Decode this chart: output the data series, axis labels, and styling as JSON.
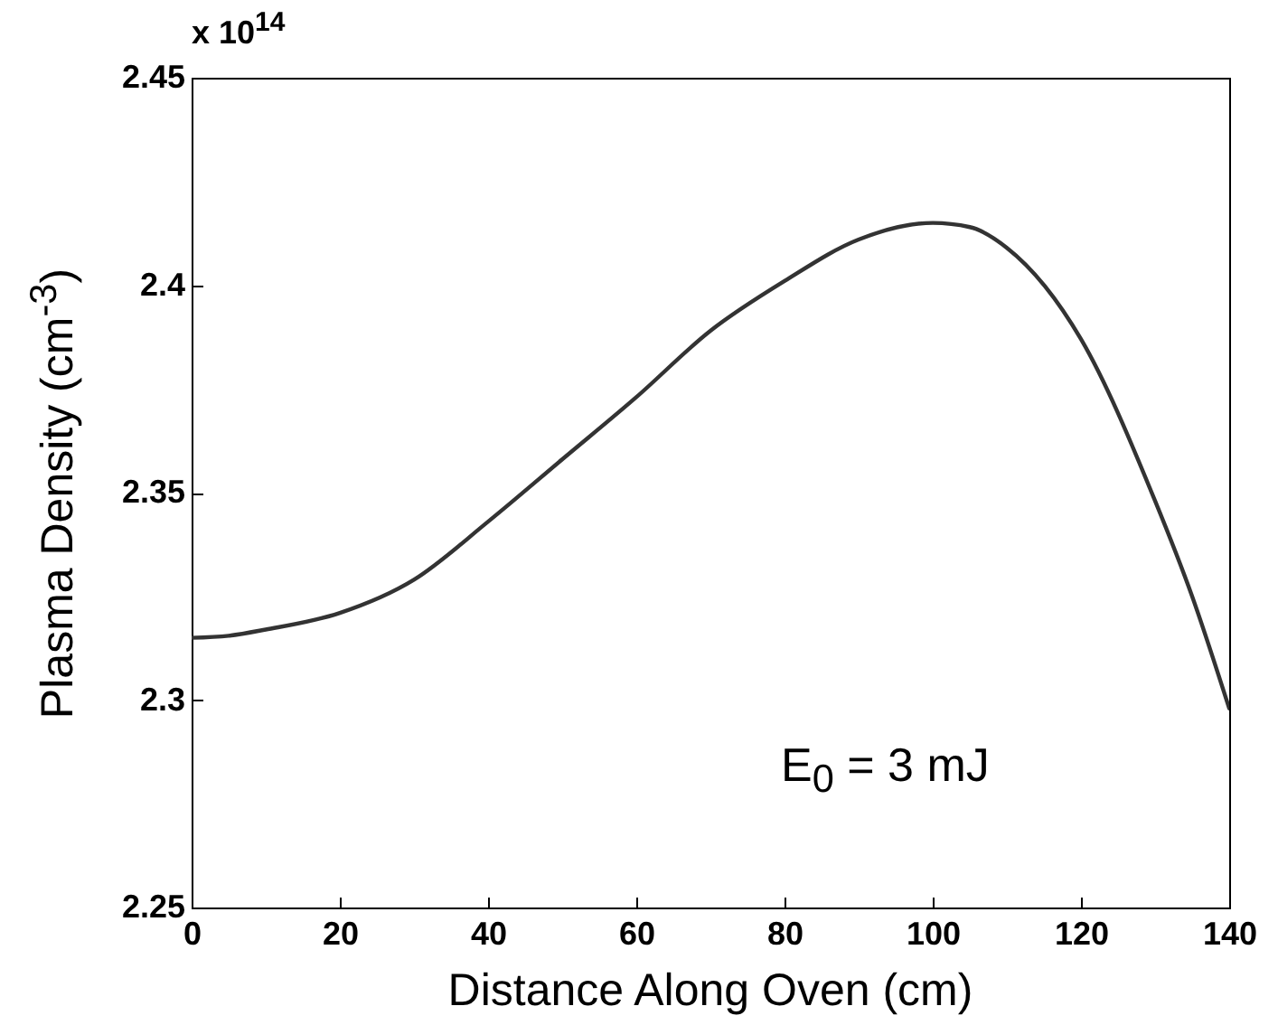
{
  "chart_data": {
    "type": "line",
    "xlabel": "Distance Along Oven (cm)",
    "ylabel": "Plasma Density (cm$^{-3}$)",
    "annotations": [
      "x 10$^{14}$",
      "E$_{0}$ = 3 mJ"
    ],
    "x": [
      0,
      5,
      10,
      20,
      30,
      40,
      50,
      60,
      70,
      80,
      90,
      100,
      105,
      110,
      120,
      130,
      135,
      140
    ],
    "series": [
      {
        "color": "#333333",
        "values": [
          2.315,
          2.3155,
          2.317,
          2.321,
          2.329,
          2.343,
          2.358,
          2.373,
          2.389,
          2.401,
          2.411,
          2.415,
          2.414,
          2.409,
          2.387,
          2.348,
          2.325,
          2.298
        ]
      }
    ],
    "xlim": [
      0,
      140
    ],
    "xticks": [
      0,
      20,
      40,
      60,
      80,
      100,
      120,
      140
    ],
    "ylim": [
      2.25,
      2.45
    ],
    "yticks": [
      2.25,
      2.3,
      2.35,
      2.4,
      2.45
    ],
    "grid": false,
    "marker": "none",
    "line_style": "solid"
  }
}
